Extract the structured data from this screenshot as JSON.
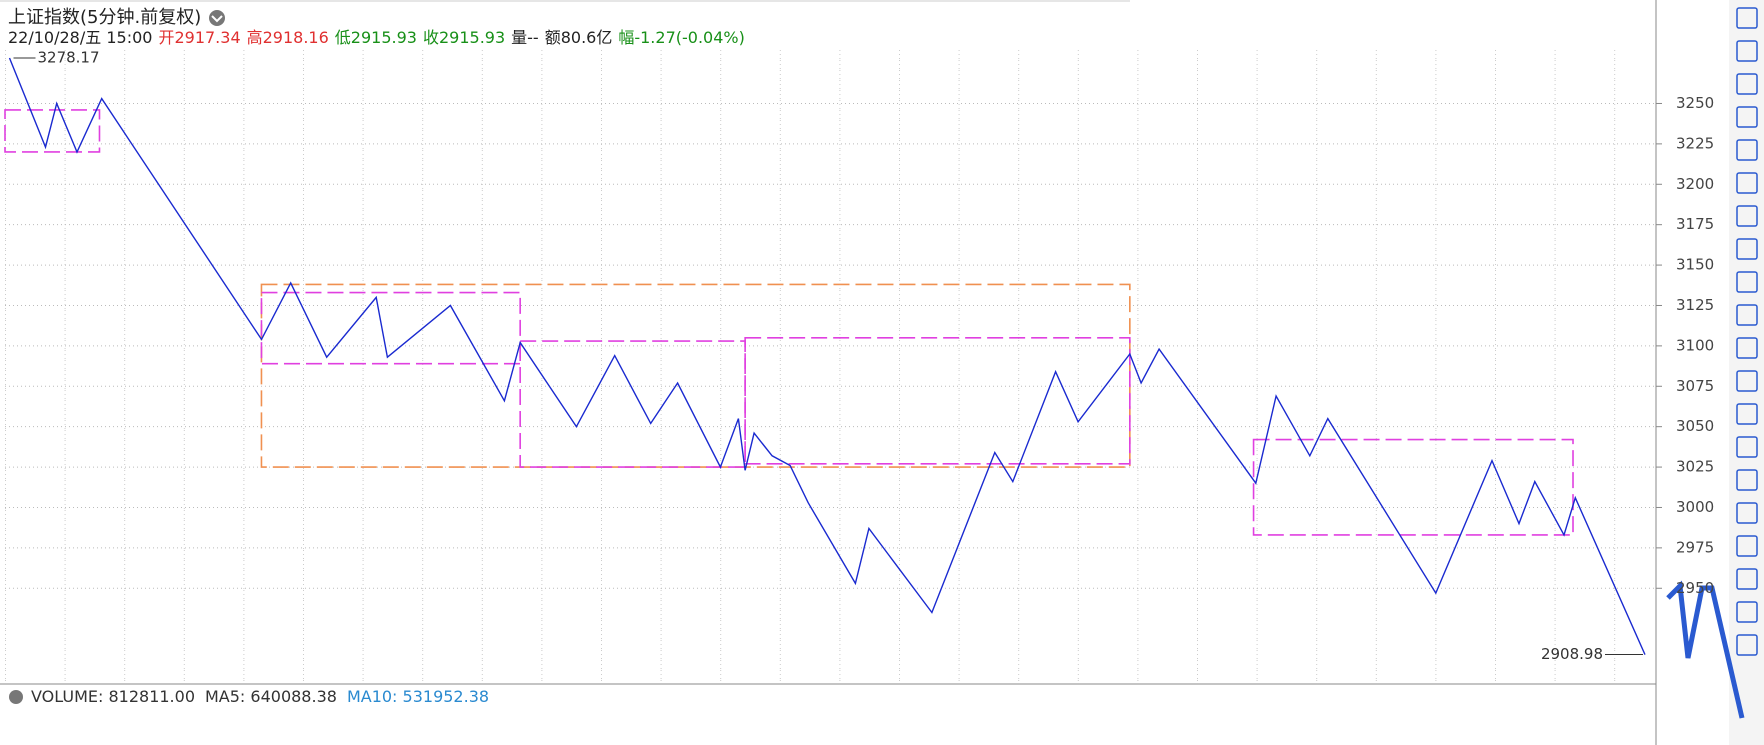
{
  "header": {
    "title": "上证指数(5分钟.前复权)",
    "quote": [
      {
        "text": "22/10/28/五 15:00",
        "color": "#222222"
      },
      {
        "text": "开2917.34",
        "color": "#e03030"
      },
      {
        "text": "高2918.16",
        "color": "#e03030"
      },
      {
        "text": "低2915.93",
        "color": "#189018"
      },
      {
        "text": "收2915.93",
        "color": "#189018"
      },
      {
        "text": "量--",
        "color": "#222222"
      },
      {
        "text": "额80.6亿",
        "color": "#222222"
      },
      {
        "text": "幅-1.27(-0.04%)",
        "color": "#189018"
      }
    ]
  },
  "chart_data": {
    "type": "line",
    "x": [
      2,
      18,
      23,
      32,
      43,
      114,
      127,
      143,
      165,
      170,
      198,
      222,
      229,
      254,
      271,
      287,
      299,
      318,
      326,
      329,
      333,
      341,
      349,
      357,
      378,
      384,
      412,
      440,
      448,
      467,
      477,
      500,
      505,
      513,
      556,
      565,
      580,
      588,
      636,
      661,
      673,
      680,
      693,
      698,
      729
    ],
    "series": [
      {
        "color": "#1a2ad0",
        "values": [
          3278.17,
          3223,
          3250,
          3220,
          3253,
          3104,
          3139,
          3093,
          3130,
          3093,
          3125,
          3066,
          3102,
          3050,
          3094,
          3052,
          3077,
          3025,
          3055,
          3023,
          3046,
          3032,
          3026,
          3003,
          2953,
          2987,
          2935,
          3034,
          3016,
          3084,
          3053,
          3095,
          3077,
          3098,
          3015,
          3069,
          3032,
          3055,
          2947,
          3029,
          2990,
          3016,
          2983,
          3006,
          2908.98
        ]
      }
    ],
    "zones": [
      {
        "x": [
          0,
          42
        ],
        "y": [
          3220,
          3246
        ],
        "color": "#e040e0"
      },
      {
        "x": [
          114,
          500
        ],
        "y": [
          3025,
          3138
        ],
        "color": "#f09050"
      },
      {
        "x": [
          114,
          229
        ],
        "y": [
          3089,
          3133
        ],
        "color": "#e040e0"
      },
      {
        "x": [
          229,
          329
        ],
        "y": [
          3025,
          3103
        ],
        "color": "#e040e0"
      },
      {
        "x": [
          329,
          500
        ],
        "y": [
          3027,
          3105
        ],
        "color": "#e040e0"
      },
      {
        "x": [
          555,
          697
        ],
        "y": [
          2983,
          3042
        ],
        "color": "#e040e0"
      }
    ],
    "annotations": [
      "3278.17",
      "2908.98"
    ],
    "xlim": [
      0,
      733
    ],
    "ylim": [
      2892,
      3280
    ],
    "yticks": [
      2950,
      2975,
      3000,
      3025,
      3050,
      3075,
      3100,
      3125,
      3150,
      3175,
      3200,
      3225,
      3250
    ],
    "grid": true,
    "volume_header": [
      {
        "text": "VOLUME: 812811.00",
        "color": "#333333"
      },
      {
        "text": "MA5: 640088.38",
        "color": "#333333"
      },
      {
        "text": "MA10: 531952.38",
        "color": "#2a8ad0"
      }
    ]
  }
}
